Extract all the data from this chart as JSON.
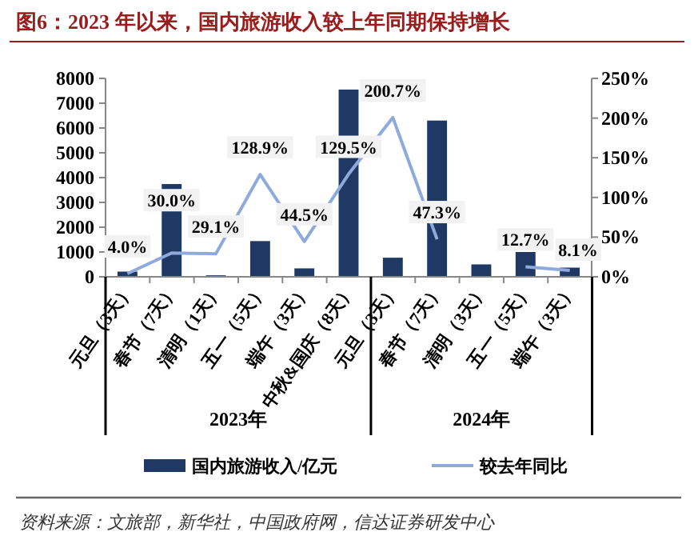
{
  "chart_data": {
    "type": "bar",
    "title": "图6：2023 年以来，国内旅游收入较上年同期保持增长",
    "categories": [
      "元旦（3天）",
      "春节（7天）",
      "清明（1天）",
      "五一（5天）",
      "端午（3天）",
      "中秋&国庆（8天）",
      "元旦（3天）",
      "春节（7天）",
      "清明（3天）",
      "五一（5天）",
      "端午（3天）"
    ],
    "series": [
      {
        "name": "国内旅游收入/亿元",
        "color": "#1f3864",
        "values": [
          210,
          3740,
          60,
          1440,
          340,
          7550,
          770,
          6300,
          500,
          1000,
          370
        ]
      },
      {
        "name": "较去年同比",
        "type": "line",
        "axis": "y2",
        "color": "#8eaadc",
        "values": [
          4.0,
          30.0,
          29.1,
          128.9,
          44.5,
          129.5,
          200.7,
          47.3,
          null,
          12.7,
          8.1
        ],
        "value_labels": [
          "4.0%",
          "30.0%",
          "29.1%",
          "128.9%",
          "44.5%",
          "129.5%",
          "200.7%",
          "47.3%",
          null,
          "12.7%",
          "8.1%"
        ]
      }
    ],
    "ylim": [
      0,
      8000
    ],
    "yticks": [
      0,
      1000,
      2000,
      3000,
      4000,
      5000,
      6000,
      7000,
      8000
    ],
    "y2lim": [
      0,
      250
    ],
    "y2ticks": [
      {
        "value": 0,
        "label": "0%"
      },
      {
        "value": 50,
        "label": "50%"
      },
      {
        "value": 100,
        "label": "100%"
      },
      {
        "value": 150,
        "label": "150%"
      },
      {
        "value": 200,
        "label": "200%"
      },
      {
        "value": 250,
        "label": "250%"
      }
    ],
    "legend": "bottom",
    "annotations": [
      "2023年",
      "2024年",
      "资料来源：文旅部，新华社，中国政府网，信达证券研发中心"
    ]
  }
}
